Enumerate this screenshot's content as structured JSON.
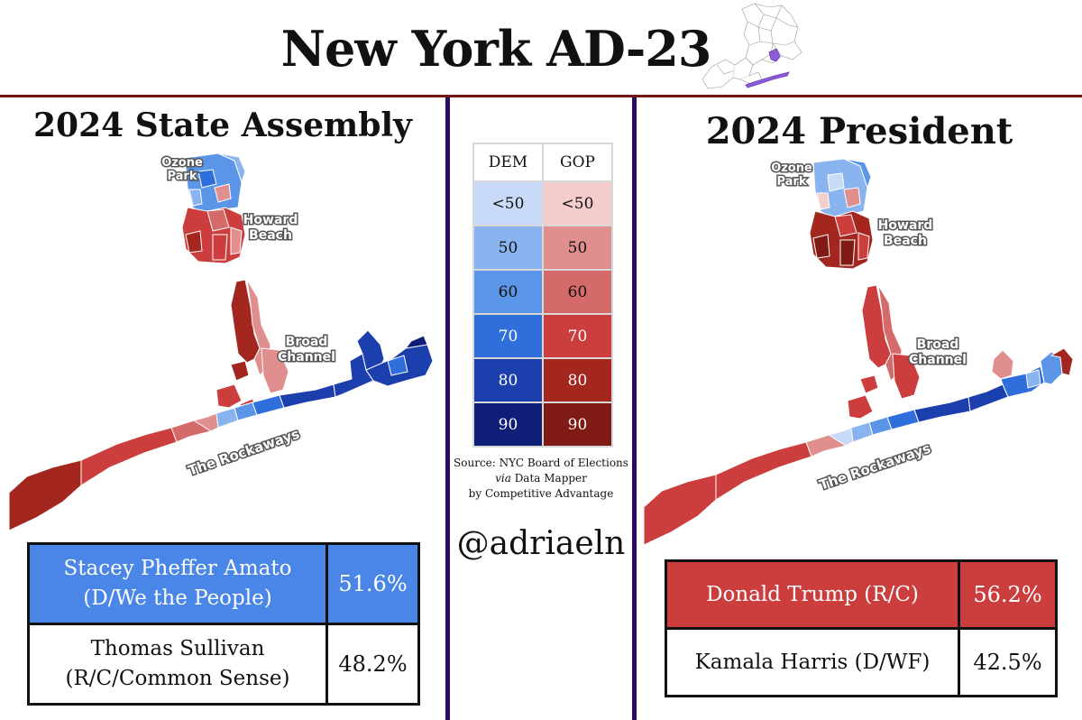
{
  "header": {
    "title": "New York AD-23"
  },
  "left_panel": {
    "title": "2024 State Assembly",
    "map_labels": {
      "ozone_park": [
        "Ozone",
        "Park"
      ],
      "howard_beach": [
        "Howard",
        "Beach"
      ],
      "broad_channel": [
        "Broad",
        "Channel"
      ],
      "rockaways": "The Rockaways"
    },
    "results": [
      {
        "candidate_line1": "Stacey Pheffer Amato",
        "candidate_line2": "(D/We the People)",
        "pct": "51.6%",
        "party": "DEM",
        "winner": true
      },
      {
        "candidate_line1": "Thomas Sullivan",
        "candidate_line2": "(R/C/Common Sense)",
        "pct": "48.2%",
        "party": "GOP",
        "winner": false
      }
    ]
  },
  "right_panel": {
    "title": "2024 President",
    "map_labels": {
      "ozone_park": [
        "Ozone",
        "Park"
      ],
      "howard_beach": [
        "Howard",
        "Beach"
      ],
      "broad_channel": [
        "Broad",
        "Channel"
      ],
      "rockaways": "The Rockaways"
    },
    "results": [
      {
        "candidate": "Donald Trump (R/C)",
        "pct": "56.2%",
        "party": "GOP",
        "winner": true
      },
      {
        "candidate": "Kamala Harris (D/WF)",
        "pct": "42.5%",
        "party": "DEM",
        "winner": false
      }
    ]
  },
  "legend": {
    "headers": [
      "DEM",
      "GOP"
    ],
    "rows": [
      {
        "label": "<50",
        "dem_color": "#c9daf8",
        "gop_color": "#f4cccc"
      },
      {
        "label": "50",
        "dem_color": "#8ab4f0",
        "gop_color": "#e08e8e"
      },
      {
        "label": "60",
        "dem_color": "#5b95e8",
        "gop_color": "#d46a6a"
      },
      {
        "label": "70",
        "dem_color": "#2f6fdc",
        "gop_color": "#cc3d3d"
      },
      {
        "label": "80",
        "dem_color": "#1c3fae",
        "gop_color": "#a3261f"
      },
      {
        "label": "90",
        "dem_color": "#0f1f78",
        "gop_color": "#7f1a14"
      }
    ]
  },
  "source": {
    "line1": "Source: NYC Board of Elections",
    "via": "via",
    "line2_rest": " Data Mapper",
    "line3": "by Competitive Advantage"
  },
  "handle": "@adriaeln",
  "colors": {
    "divider": "#2b0a63",
    "top_rule": "#7a1515"
  }
}
